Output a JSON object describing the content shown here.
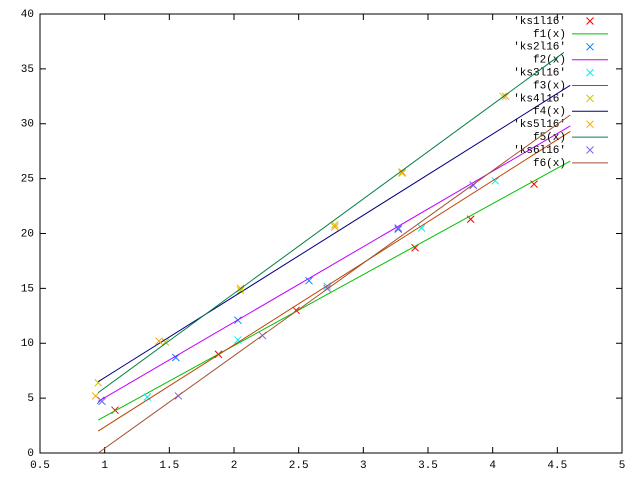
{
  "chart_data": {
    "type": "scatter-fit",
    "xlim": [
      0.5,
      5
    ],
    "ylim": [
      0,
      40
    ],
    "xticks": [
      0.5,
      1,
      1.5,
      2,
      2.5,
      3,
      3.5,
      4,
      4.5,
      5
    ],
    "yticks": [
      0,
      5,
      10,
      15,
      20,
      25,
      30,
      35,
      40
    ],
    "legend": "top-right",
    "series": [
      {
        "name": "'ks1l16'",
        "kind": "points",
        "color": "#ff0000",
        "x": [
          1.08,
          1.88,
          2.48,
          3.4,
          3.83,
          4.32
        ],
        "values": [
          3.9,
          9.0,
          13.0,
          18.7,
          21.3,
          24.5
        ]
      },
      {
        "name": "f1(x)",
        "kind": "line",
        "color": "#00c000",
        "x": [
          0.95,
          4.6
        ],
        "values": [
          3.0,
          26.6
        ]
      },
      {
        "name": "'ks2l16'",
        "kind": "points",
        "color": "#0080ff",
        "x": [
          0.97,
          1.55,
          2.03,
          2.58,
          3.27,
          3.85
        ],
        "values": [
          4.8,
          8.7,
          12.1,
          15.7,
          20.4,
          24.4
        ]
      },
      {
        "name": "f2(x)",
        "kind": "line",
        "color": "#c000ff",
        "x": [
          0.95,
          4.6
        ],
        "values": [
          4.7,
          29.8
        ]
      },
      {
        "name": "'ks3l16'",
        "kind": "points",
        "color": "#00eeee",
        "x": [
          1.33,
          2.03,
          2.72,
          3.45,
          4.02
        ],
        "values": [
          5.1,
          10.3,
          15.2,
          20.5,
          24.8
        ]
      },
      {
        "name": "f3(x)",
        "kind": "line",
        "color": "#c04000",
        "x": [
          0.95,
          4.6
        ],
        "values": [
          2.0,
          29.3
        ]
      },
      {
        "name": "'ks4l16'",
        "kind": "points",
        "color": "#c8c800",
        "x": [
          0.95,
          1.47,
          2.05,
          2.78,
          3.3,
          4.08
        ],
        "values": [
          6.4,
          10.1,
          14.8,
          20.8,
          25.5,
          32.5
        ]
      },
      {
        "name": "f4(x)",
        "kind": "line",
        "color": "#000080",
        "x": [
          0.95,
          4.6
        ],
        "values": [
          6.5,
          33.5
        ]
      },
      {
        "name": "'ks5l16'",
        "kind": "points",
        "color": "#ffa000",
        "x": [
          0.93,
          1.42,
          2.05,
          2.78,
          3.3,
          4.1
        ],
        "values": [
          5.2,
          10.2,
          15.0,
          20.6,
          25.6,
          32.5
        ]
      },
      {
        "name": "f5(x)",
        "kind": "line",
        "color": "#008040",
        "x": [
          0.95,
          4.55
        ],
        "values": [
          5.5,
          36.5
        ]
      },
      {
        "name": "'ks6l16'",
        "kind": "points",
        "color": "#8060ff",
        "x": [
          0.98,
          1.57,
          2.22,
          2.72,
          3.27,
          3.85
        ],
        "values": [
          4.7,
          5.2,
          10.7,
          15.0,
          20.5,
          24.4
        ]
      },
      {
        "name": "f6(x)",
        "kind": "line",
        "color": "#a0522d",
        "x": [
          0.95,
          4.6
        ],
        "values": [
          0.0,
          30.8
        ]
      }
    ]
  }
}
